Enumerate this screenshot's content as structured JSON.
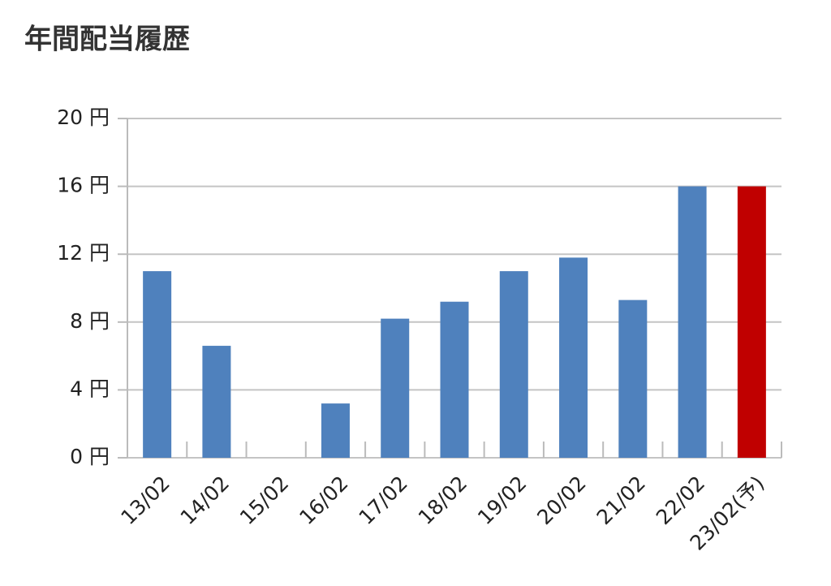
{
  "chart_data": {
    "type": "bar",
    "title": "年間配当履歴",
    "categories": [
      "13/02",
      "14/02",
      "15/02",
      "16/02",
      "17/02",
      "18/02",
      "19/02",
      "20/02",
      "21/02",
      "22/02",
      "23/02(予)"
    ],
    "values": [
      11,
      6.6,
      0,
      3.2,
      8.2,
      9.2,
      11,
      11.8,
      9.3,
      16,
      16
    ],
    "colors": [
      "#4f81bd",
      "#4f81bd",
      "#4f81bd",
      "#4f81bd",
      "#4f81bd",
      "#4f81bd",
      "#4f81bd",
      "#4f81bd",
      "#4f81bd",
      "#4f81bd",
      "#c00000"
    ],
    "ylim": [
      0,
      20
    ],
    "yticks": [
      {
        "value": 0,
        "label": "0 円"
      },
      {
        "value": 4,
        "label": "4 円"
      },
      {
        "value": 8,
        "label": "8 円"
      },
      {
        "value": 12,
        "label": "12 円"
      },
      {
        "value": 16,
        "label": "16 円"
      },
      {
        "value": 20,
        "label": "20 円"
      }
    ],
    "grid": true
  }
}
